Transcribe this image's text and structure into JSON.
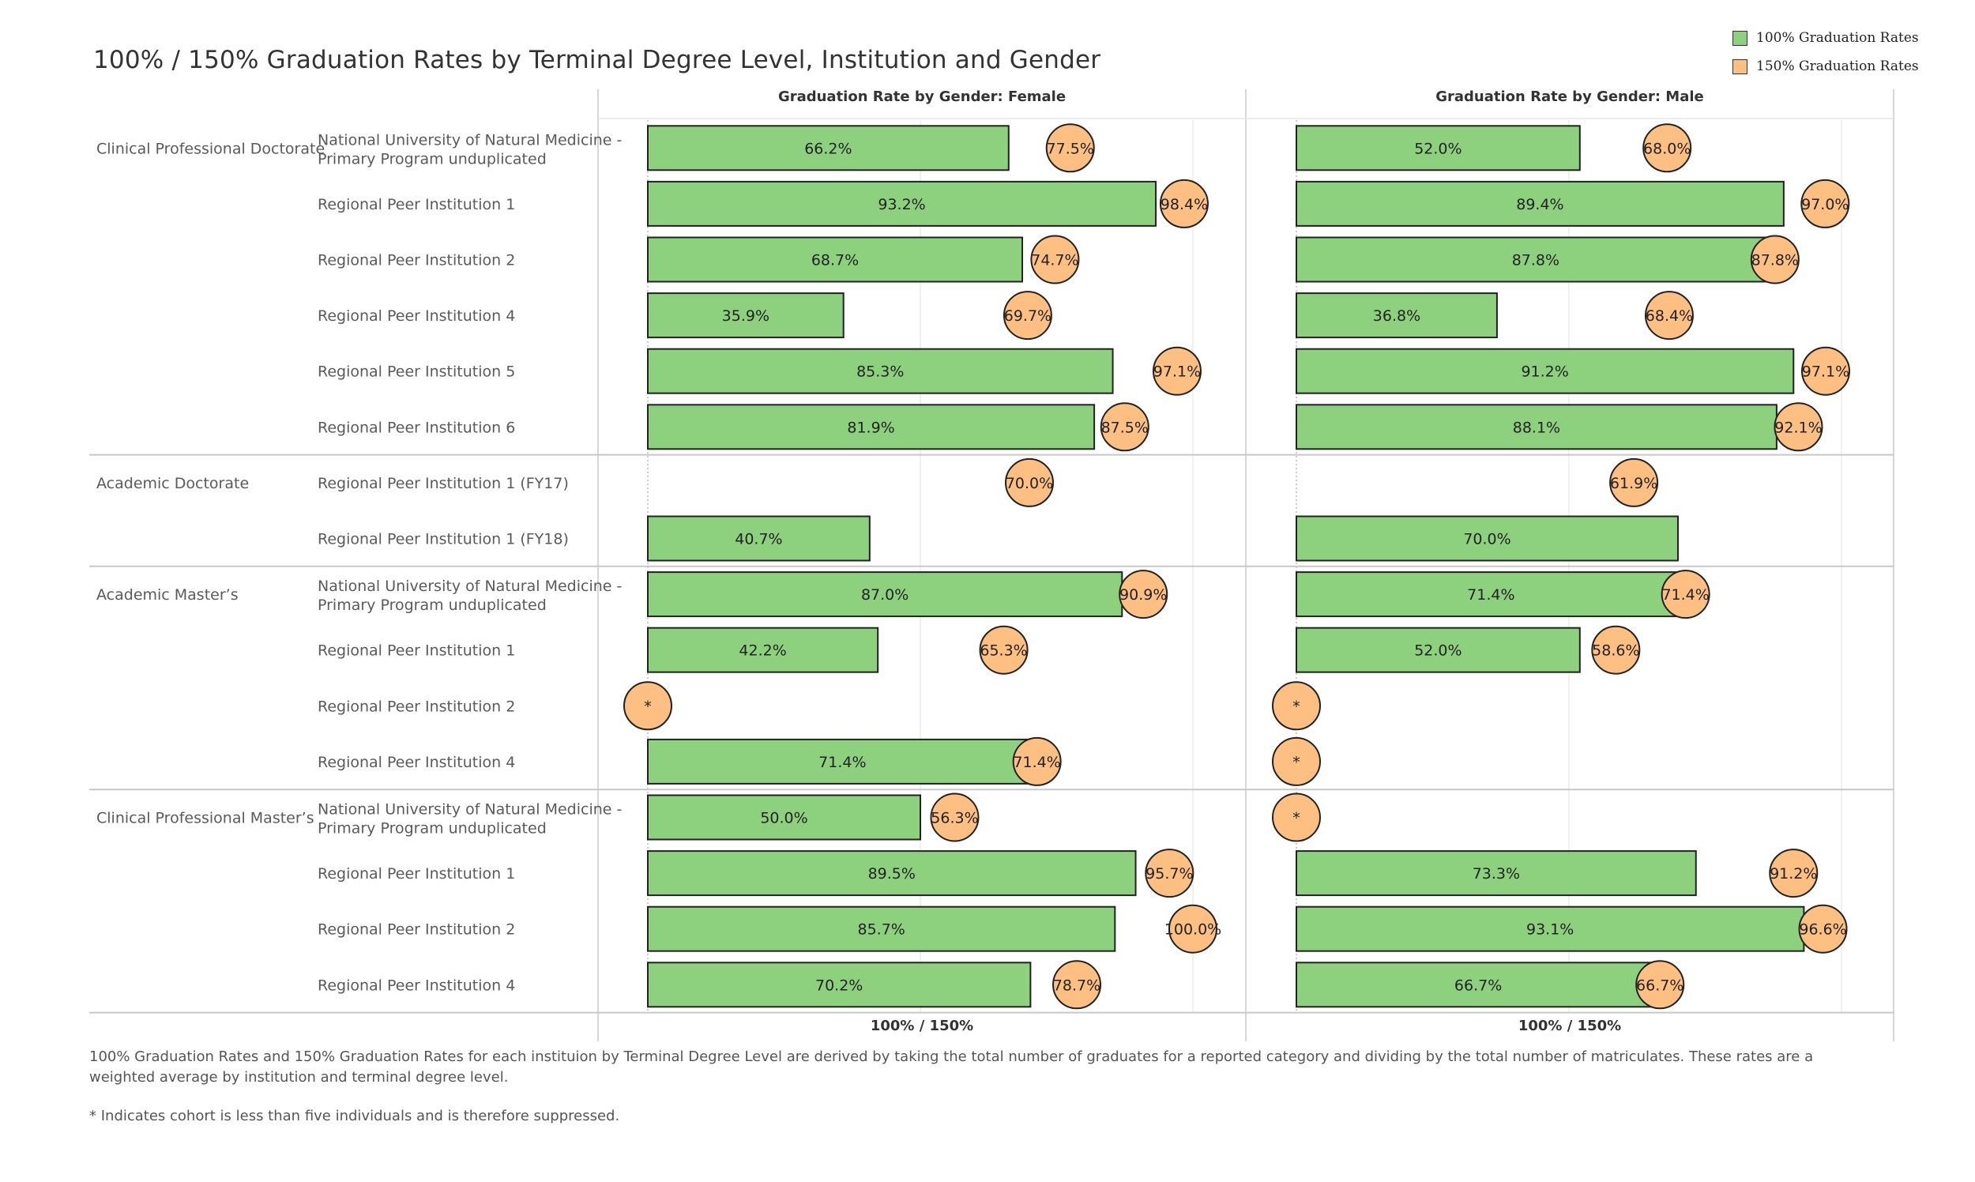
{
  "title": "100% / 150% Graduation Rates by Terminal Degree Level, Institution and Gender",
  "legend": [
    {
      "label": "100% Graduation Rates",
      "color": "#8dd17e"
    },
    {
      "label": "150% Graduation Rates",
      "color": "#fdbf82"
    }
  ],
  "panels": [
    {
      "header": "Graduation Rate by Gender: Female",
      "axis_label": "100% / 150%"
    },
    {
      "header": "Graduation Rate by Gender: Male",
      "axis_label": "100% / 150%"
    }
  ],
  "footnotes": [
    "100% Graduation Rates and 150% Graduation Rates for each instituion by Terminal Degree Level are derived by taking the total number of graduates for a reported category and dividing by the total number of matriculates. These rates are a weighted average by institution and terminal degree level.",
    "* Indicates cohort is less than five individuals and is therefore suppressed."
  ],
  "chart_data": {
    "type": "bar",
    "xlim": [
      0,
      1.0
    ],
    "colors": {
      "rate_100": "#8dd17e",
      "rate_150": "#fdbf82",
      "outline": "#222222"
    },
    "groups": [
      {
        "name": "Clinical Professional Doctorate",
        "rows": [
          {
            "institution": [
              "National University of Natural Medicine -",
              "Primary Program unduplicated"
            ],
            "female": {
              "rate_100": 66.2,
              "rate_150": 77.5
            },
            "male": {
              "rate_100": 52.0,
              "rate_150": 68.0
            }
          },
          {
            "institution": [
              "Regional Peer Institution 1"
            ],
            "female": {
              "rate_100": 93.2,
              "rate_150": 98.4
            },
            "male": {
              "rate_100": 89.4,
              "rate_150": 97.0
            }
          },
          {
            "institution": [
              "Regional Peer Institution 2"
            ],
            "female": {
              "rate_100": 68.7,
              "rate_150": 74.7
            },
            "male": {
              "rate_100": 87.8,
              "rate_150": 87.8
            }
          },
          {
            "institution": [
              "Regional Peer Institution 4"
            ],
            "female": {
              "rate_100": 35.9,
              "rate_150": 69.7
            },
            "male": {
              "rate_100": 36.8,
              "rate_150": 68.4
            }
          },
          {
            "institution": [
              "Regional Peer Institution 5"
            ],
            "female": {
              "rate_100": 85.3,
              "rate_150": 97.1
            },
            "male": {
              "rate_100": 91.2,
              "rate_150": 97.1
            }
          },
          {
            "institution": [
              "Regional Peer Institution 6"
            ],
            "female": {
              "rate_100": 81.9,
              "rate_150": 87.5
            },
            "male": {
              "rate_100": 88.1,
              "rate_150": 92.1
            }
          }
        ]
      },
      {
        "name": "Academic Doctorate",
        "rows": [
          {
            "institution": [
              "Regional Peer Institution 1 (FY17)"
            ],
            "female": {
              "rate_100": null,
              "rate_150": 70.0
            },
            "male": {
              "rate_100": null,
              "rate_150": 61.9
            }
          },
          {
            "institution": [
              "Regional Peer Institution 1 (FY18)"
            ],
            "female": {
              "rate_100": 40.7,
              "rate_150": null
            },
            "male": {
              "rate_100": 70.0,
              "rate_150": null
            }
          }
        ]
      },
      {
        "name": "Academic Master’s",
        "rows": [
          {
            "institution": [
              "National University of Natural Medicine -",
              "Primary Program unduplicated"
            ],
            "female": {
              "rate_100": 87.0,
              "rate_150": 90.9
            },
            "male": {
              "rate_100": 71.4,
              "rate_150": 71.4
            }
          },
          {
            "institution": [
              "Regional Peer Institution 1"
            ],
            "female": {
              "rate_100": 42.2,
              "rate_150": 65.3
            },
            "male": {
              "rate_100": 52.0,
              "rate_150": 58.6
            }
          },
          {
            "institution": [
              "Regional Peer Institution 2"
            ],
            "female": {
              "rate_100": null,
              "rate_150": "*"
            },
            "male": {
              "rate_100": null,
              "rate_150": "*"
            }
          },
          {
            "institution": [
              "Regional Peer Institution 4"
            ],
            "female": {
              "rate_100": 71.4,
              "rate_150": 71.4
            },
            "male": {
              "rate_100": null,
              "rate_150": "*"
            }
          }
        ]
      },
      {
        "name": "Clinical Professional Master’s",
        "rows": [
          {
            "institution": [
              "National University of Natural Medicine -",
              "Primary Program unduplicated"
            ],
            "female": {
              "rate_100": 50.0,
              "rate_150": 56.3
            },
            "male": {
              "rate_100": null,
              "rate_150": "*"
            }
          },
          {
            "institution": [
              "Regional Peer Institution 1"
            ],
            "female": {
              "rate_100": 89.5,
              "rate_150": 95.7
            },
            "male": {
              "rate_100": 73.3,
              "rate_150": 91.2
            }
          },
          {
            "institution": [
              "Regional Peer Institution 2"
            ],
            "female": {
              "rate_100": 85.7,
              "rate_150": 100.0
            },
            "male": {
              "rate_100": 93.1,
              "rate_150": 96.6
            }
          },
          {
            "institution": [
              "Regional Peer Institution 4"
            ],
            "female": {
              "rate_100": 70.2,
              "rate_150": 78.7
            },
            "male": {
              "rate_100": 66.7,
              "rate_150": 66.7
            }
          }
        ]
      }
    ]
  }
}
